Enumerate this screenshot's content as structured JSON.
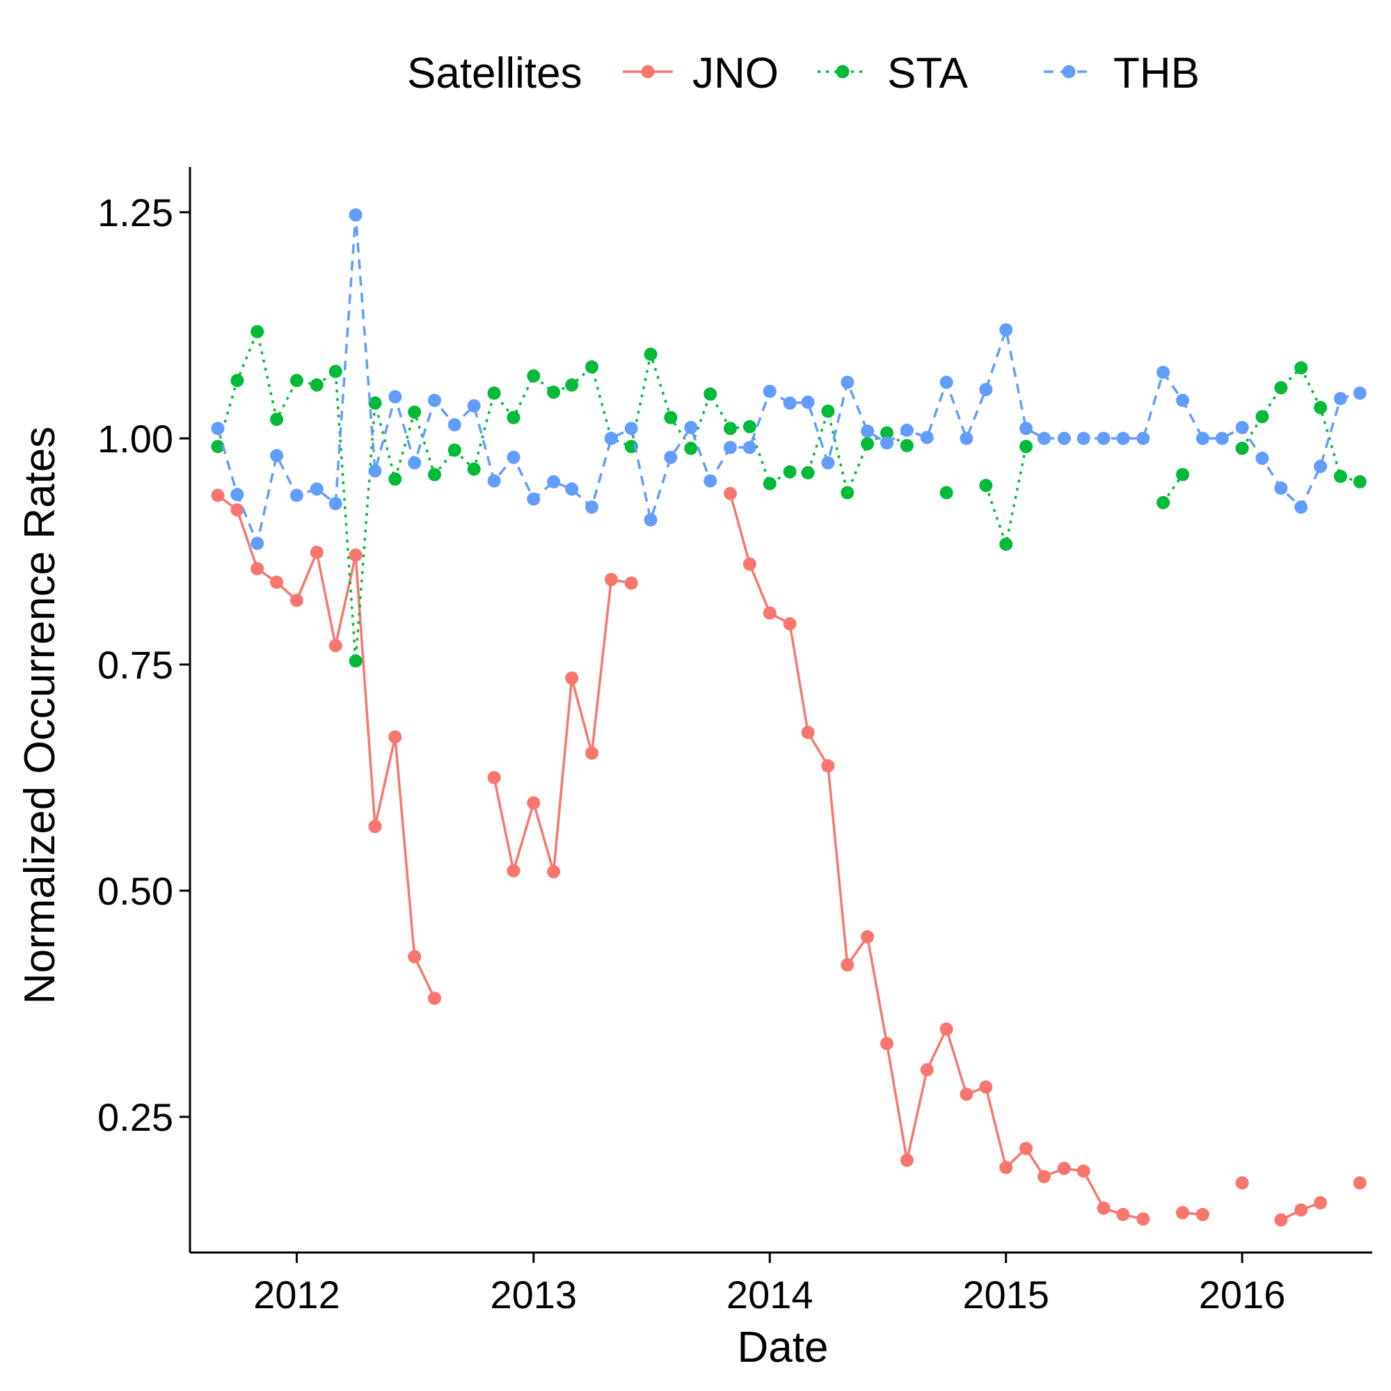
{
  "chart_data": {
    "type": "line",
    "xlabel": "Date",
    "ylabel": "Normalized Occurrence Rates",
    "xlim": [
      "2011-07-20",
      "2016-07-20"
    ],
    "ylim": [
      0.1,
      1.3
    ],
    "x_ticks": [
      "2012",
      "2013",
      "2014",
      "2015",
      "2016"
    ],
    "x_tick_dates": [
      "2012-01-01",
      "2013-01-01",
      "2014-01-01",
      "2015-01-01",
      "2016-01-01"
    ],
    "y_ticks": [
      0.25,
      0.5,
      0.75,
      1.0,
      1.25
    ],
    "y_tick_labels": [
      "0.25",
      "0.50",
      "0.75",
      "1.00",
      "1.25"
    ],
    "grid": false,
    "legend": {
      "title": "Satellites",
      "placement": "top"
    },
    "x": [
      "2011-09",
      "2011-10",
      "2011-11",
      "2011-12",
      "2012-01",
      "2012-02",
      "2012-03",
      "2012-04",
      "2012-05",
      "2012-06",
      "2012-07",
      "2012-08",
      "2012-09",
      "2012-10",
      "2012-11",
      "2012-12",
      "2013-01",
      "2013-02",
      "2013-03",
      "2013-04",
      "2013-05",
      "2013-06",
      "2013-07",
      "2013-08",
      "2013-09",
      "2013-10",
      "2013-11",
      "2013-12",
      "2014-01",
      "2014-02",
      "2014-03",
      "2014-04",
      "2014-05",
      "2014-06",
      "2014-07",
      "2014-08",
      "2014-09",
      "2014-10",
      "2014-11",
      "2014-12",
      "2015-01",
      "2015-02",
      "2015-03",
      "2015-04",
      "2015-05",
      "2015-06",
      "2015-07",
      "2015-08",
      "2015-09",
      "2015-10",
      "2015-11",
      "2015-12",
      "2016-01",
      "2016-02",
      "2016-03",
      "2016-04",
      "2016-05",
      "2016-06",
      "2016-07"
    ],
    "series": [
      {
        "name": "JNO",
        "color": "#F8766D",
        "dash": "solid",
        "values": [
          0.937,
          0.921,
          0.856,
          0.841,
          0.821,
          0.874,
          0.771,
          0.871,
          0.571,
          0.67,
          0.427,
          0.381,
          null,
          null,
          0.625,
          0.522,
          0.597,
          0.521,
          0.735,
          0.652,
          0.844,
          0.84,
          null,
          null,
          null,
          null,
          0.939,
          0.861,
          0.807,
          0.795,
          0.675,
          0.638,
          0.418,
          0.449,
          0.331,
          0.202,
          0.302,
          0.347,
          0.275,
          0.283,
          0.194,
          0.215,
          0.184,
          0.193,
          0.19,
          0.149,
          0.142,
          0.137,
          null,
          0.144,
          0.142,
          null,
          0.177,
          null,
          0.136,
          0.147,
          0.155,
          null,
          0.177
        ]
      },
      {
        "name": "STA",
        "color": "#00BA38",
        "dash": "dotted",
        "values": [
          0.991,
          1.064,
          1.118,
          1.021,
          1.064,
          1.059,
          1.074,
          0.754,
          1.039,
          0.955,
          1.029,
          0.96,
          0.987,
          0.966,
          1.05,
          1.023,
          1.069,
          1.051,
          1.059,
          1.079,
          1.0,
          0.991,
          1.093,
          1.023,
          0.989,
          1.049,
          1.011,
          1.013,
          0.95,
          0.963,
          0.962,
          1.03,
          0.94,
          0.994,
          1.006,
          0.992,
          null,
          0.94,
          null,
          0.948,
          0.883,
          0.991,
          null,
          null,
          null,
          null,
          null,
          null,
          0.929,
          0.96,
          null,
          null,
          0.989,
          1.024,
          1.056,
          1.078,
          1.034,
          0.958,
          0.952
        ]
      },
      {
        "name": "THB",
        "color": "#619CFF",
        "dash": "dashed",
        "values": [
          1.011,
          0.938,
          0.884,
          0.981,
          0.937,
          0.944,
          0.928,
          1.247,
          0.964,
          1.046,
          0.973,
          1.042,
          1.015,
          1.036,
          0.953,
          0.979,
          0.933,
          0.952,
          0.944,
          0.924,
          1.0,
          1.011,
          0.91,
          0.979,
          1.012,
          0.953,
          0.99,
          0.99,
          1.052,
          1.039,
          1.04,
          0.973,
          1.062,
          1.008,
          0.995,
          1.009,
          1.001,
          1.062,
          1.0,
          1.054,
          1.12,
          1.011,
          1.0,
          1.0,
          1.0,
          1.0,
          1.0,
          1.0,
          1.073,
          1.042,
          1.0,
          1.0,
          1.012,
          0.978,
          0.945,
          0.924,
          0.969,
          1.044,
          1.05
        ]
      }
    ]
  }
}
